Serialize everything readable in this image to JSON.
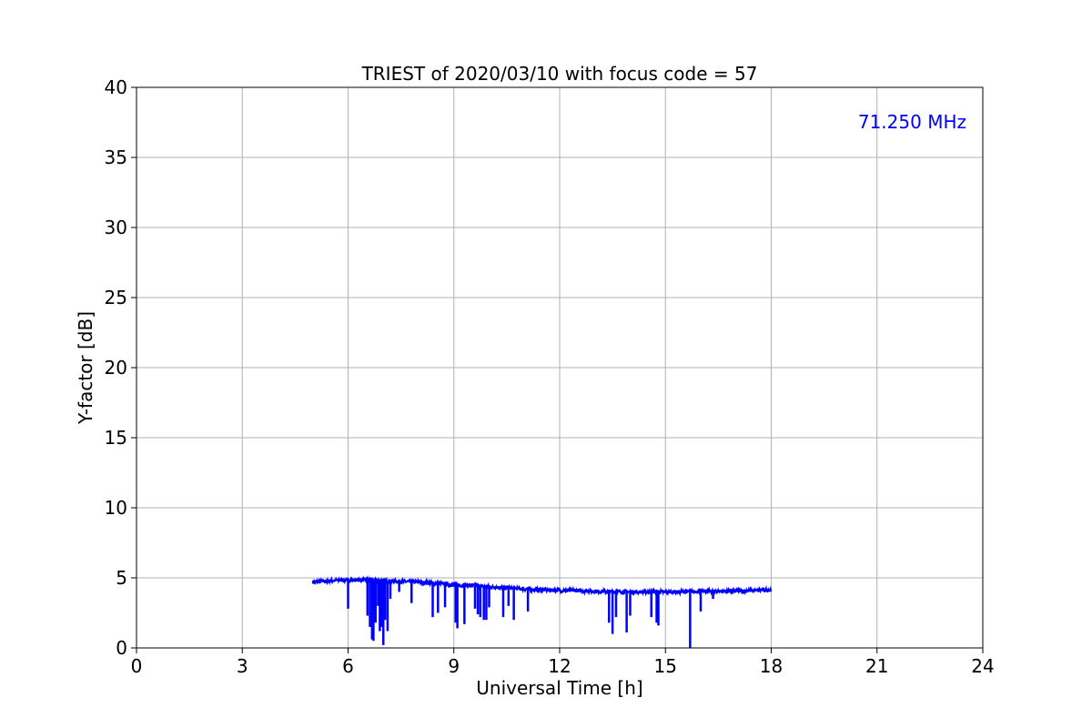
{
  "chart_data": {
    "type": "line",
    "title": "TRIEST of 2020/03/10 with focus code = 57",
    "xlabel": "Universal Time [h]",
    "ylabel": "Y-factor [dB]",
    "xlim": [
      0,
      24
    ],
    "ylim": [
      0,
      40
    ],
    "x_ticks": [
      0,
      3,
      6,
      9,
      12,
      15,
      18,
      21,
      24
    ],
    "y_ticks": [
      0,
      5,
      10,
      15,
      20,
      25,
      30,
      35,
      40
    ],
    "grid": true,
    "annotation": "71.250 MHz",
    "colors": {
      "series": "#0000ff",
      "annotation": "#0000ff",
      "grid": "#b0b0b0"
    },
    "series": [
      {
        "baseline": {
          "x": [
            5.0,
            5.5,
            6.0,
            6.5,
            7.0,
            7.5,
            8.0,
            8.5,
            9.0,
            9.5,
            10.0,
            10.5,
            11.0,
            11.5,
            12.0,
            12.5,
            13.0,
            13.5,
            14.0,
            14.5,
            15.0,
            15.5,
            16.0,
            16.5,
            17.0,
            17.5,
            18.0
          ],
          "y": [
            4.7,
            4.8,
            4.85,
            4.85,
            4.8,
            4.75,
            4.7,
            4.6,
            4.5,
            4.45,
            4.35,
            4.3,
            4.2,
            4.15,
            4.1,
            4.1,
            4.05,
            4.0,
            4.0,
            4.0,
            4.0,
            4.0,
            4.05,
            4.05,
            4.05,
            4.1,
            4.15
          ]
        },
        "dips": {
          "x": [
            6.0,
            6.55,
            6.62,
            6.68,
            6.72,
            6.78,
            6.85,
            6.9,
            6.95,
            7.0,
            7.05,
            7.12,
            7.2,
            7.45,
            7.8,
            8.4,
            8.55,
            8.75,
            9.05,
            9.1,
            9.3,
            9.6,
            9.68,
            9.75,
            9.85,
            9.92,
            10.0,
            10.4,
            10.55,
            10.7,
            11.1,
            13.4,
            13.5,
            13.6,
            13.9,
            14.0,
            14.6,
            14.75,
            14.8,
            15.7,
            16.0,
            16.35
          ],
          "y": [
            2.8,
            2.3,
            1.5,
            0.6,
            0.5,
            1.8,
            3.0,
            1.2,
            1.5,
            0.2,
            2.0,
            1.2,
            3.5,
            4.0,
            3.2,
            2.2,
            2.5,
            2.9,
            1.8,
            1.4,
            1.7,
            2.8,
            2.4,
            2.2,
            2.0,
            2.0,
            2.9,
            2.2,
            3.0,
            2.0,
            2.6,
            1.8,
            1.0,
            2.2,
            1.1,
            2.3,
            2.2,
            1.8,
            1.6,
            0.0,
            2.6,
            3.5
          ]
        }
      }
    ]
  }
}
